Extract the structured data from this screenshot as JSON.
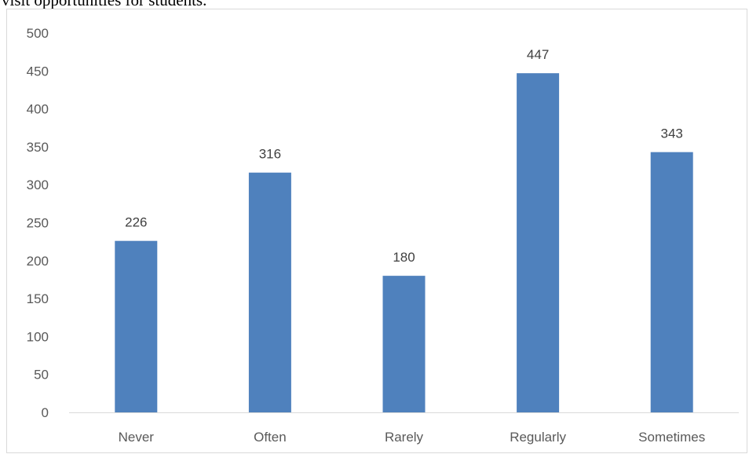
{
  "caption": "visit opportunities for students.",
  "chart_data": {
    "type": "bar",
    "categories": [
      "Never",
      "Often",
      "Rarely",
      "Regularly",
      "Sometimes"
    ],
    "values": [
      226,
      316,
      180,
      447,
      343
    ],
    "data_labels": [
      "226",
      "316",
      "180",
      "447",
      "343"
    ],
    "y_ticks": [
      0,
      50,
      100,
      150,
      200,
      250,
      300,
      350,
      400,
      450,
      500
    ],
    "ylim": [
      0,
      500
    ],
    "title": "",
    "xlabel": "",
    "ylabel": "",
    "grid": false,
    "legend": "none",
    "bar_color": "#4f81bd",
    "axis_color": "#d9d9d9"
  }
}
